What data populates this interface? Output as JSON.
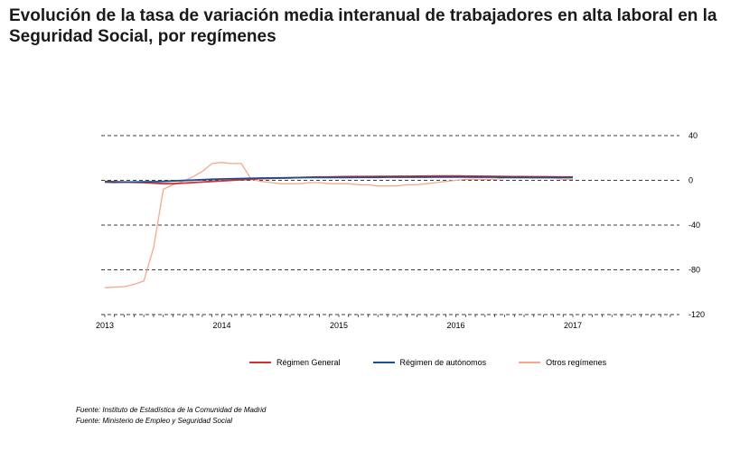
{
  "title": "Evolución de la tasa de variación media interanual de trabajadores en alta laboral en la Seguridad Social, por  regímenes",
  "chart_data": {
    "type": "line",
    "title": "Evolución de la tasa de variación media interanual de trabajadores en alta laboral en la Seguridad Social, por  regímenes",
    "xlabel": "",
    "ylabel": "",
    "x_ticks": [
      "2013",
      "2014",
      "2015",
      "2016",
      "2017"
    ],
    "y_ticks": [
      40,
      0,
      -40,
      -80,
      -120
    ],
    "ylim": [
      -120,
      40
    ],
    "y_axis_position": "right",
    "grid": "horizontal dashed",
    "legend_position": "bottom",
    "x": [
      "2013-01",
      "2013-02",
      "2013-03",
      "2013-04",
      "2013-05",
      "2013-06",
      "2013-07",
      "2013-08",
      "2013-09",
      "2013-10",
      "2013-11",
      "2013-12",
      "2014-01",
      "2014-02",
      "2014-03",
      "2014-04",
      "2014-05",
      "2014-06",
      "2014-07",
      "2014-08",
      "2014-09",
      "2014-10",
      "2014-11",
      "2014-12",
      "2015-01",
      "2015-02",
      "2015-03",
      "2015-04",
      "2015-05",
      "2015-06",
      "2015-07",
      "2015-08",
      "2015-09",
      "2015-10",
      "2015-11",
      "2015-12",
      "2016-01",
      "2016-02",
      "2016-03",
      "2016-04",
      "2016-05",
      "2016-06",
      "2016-07",
      "2016-08",
      "2016-09",
      "2016-10",
      "2016-11",
      "2016-12",
      "2017-01"
    ],
    "series": [
      {
        "name": "Régimen General",
        "color": "#d32f2f",
        "values": [
          -1,
          -1.2,
          -1.5,
          -1.8,
          -2,
          -2.5,
          -3,
          -3,
          -2.5,
          -2,
          -1.5,
          -1,
          -0.5,
          0,
          0.5,
          1,
          1.5,
          1.8,
          2,
          2.2,
          2.5,
          2.8,
          3,
          3,
          3.2,
          3.3,
          3.4,
          3.4,
          3.5,
          3.5,
          3.6,
          3.6,
          3.7,
          3.8,
          3.9,
          4,
          4,
          3.8,
          3.7,
          3.6,
          3.5,
          3.4,
          3.3,
          3.3,
          3.2,
          3.2,
          3.1,
          3,
          3
        ]
      },
      {
        "name": "Régimen de autónomos",
        "color": "#1f4e8c",
        "values": [
          -1.5,
          -1.8,
          -1.6,
          -1.5,
          -1.4,
          -1.2,
          -1,
          -0.6,
          -0.2,
          0.2,
          0.6,
          1,
          1.2,
          1.4,
          1.6,
          1.8,
          2,
          2.1,
          2.2,
          2.3,
          2.4,
          2.5,
          2.5,
          2.6,
          2.6,
          2.6,
          2.7,
          2.7,
          2.7,
          2.8,
          2.8,
          2.8,
          2.8,
          2.8,
          2.9,
          2.9,
          2.9,
          2.9,
          2.8,
          2.8,
          2.8,
          2.7,
          2.7,
          2.7,
          2.6,
          2.6,
          2.6,
          2.5,
          2.5
        ]
      },
      {
        "name": "Otros regímenes",
        "color": "#f4a98c",
        "values": [
          -96,
          -95.5,
          -95,
          -93,
          -90,
          -60,
          -8,
          -4,
          -1,
          3,
          8,
          15,
          16,
          15,
          15,
          1,
          -1,
          -2,
          -3,
          -3,
          -3,
          -2,
          -2,
          -3,
          -3,
          -3,
          -4,
          -4,
          -5,
          -5,
          -5,
          -4,
          -4,
          -3,
          -2,
          -1,
          0,
          1,
          1,
          1,
          1,
          2,
          2,
          2,
          2,
          2,
          2,
          1,
          1
        ]
      }
    ]
  },
  "sources": [
    "Fuente: Instituto de Estadística de la Comunidad de Madrid",
    "Fuente: Ministerio de Empleo y Seguridad Social"
  ]
}
